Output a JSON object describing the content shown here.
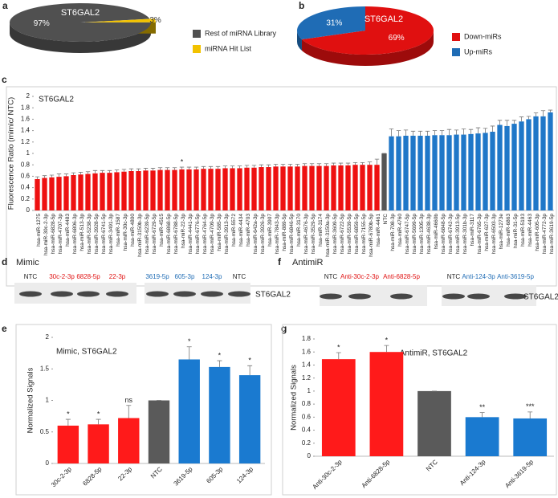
{
  "chart_data": [
    {
      "type": "pie",
      "panel": "a",
      "title": "ST6GAL2",
      "categories": [
        "Rest of miRNA Library",
        "miRNA Hit List"
      ],
      "values": [
        97,
        3
      ],
      "value_labels": [
        "97%",
        "3%"
      ],
      "colors": [
        "#505050",
        "#f2c200"
      ],
      "legend": "right"
    },
    {
      "type": "pie",
      "panel": "b",
      "title": "ST6GAL2",
      "categories": [
        "Down-miRs",
        "Up-miRs"
      ],
      "values": [
        69,
        31
      ],
      "value_labels": [
        "69%",
        "31%"
      ],
      "colors": [
        "#e01010",
        "#1f6cb5"
      ],
      "legend": "right"
    },
    {
      "type": "bar",
      "panel": "c",
      "title": "ST6GAL2",
      "ylabel": "Fluorescence Ratio (mimic/ NTC)",
      "categories": [
        "hsa-miR-1275",
        "hsa-miR-30c-2-3p",
        "hsa-miR-6828-5p",
        "hsa-miR-4707-3p",
        "hsa-miR-4483",
        "hsa-miR-6806-3p",
        "hsa-miR-513-3p",
        "hsa-miR-5238-3p",
        "hsa-miR-3928-5p",
        "hsa-miR-6741-5p",
        "hsa-miR-3491-3p",
        "hsa-miR-1587",
        "hsa-miR-30c-3p",
        "hsa-miR-4800",
        "hsa-miR-3150b-3p",
        "hsa-miR-6239-5p",
        "hsa-miR-6729-5p",
        "hsa-miR-4515",
        "hsa-miR-6868-5p",
        "hsa-miR-6788-5p",
        "hsa-miR-22-3p",
        "hsa-miR-4441-3p",
        "hsa-miR-6776-5p",
        "hsa-miR-4764-5p",
        "hsa-miR-4709-3p",
        "hsa-miR-585-3p",
        "hsa-miR-3913-3p",
        "hsa-miR-5572",
        "hsa-miR-4434",
        "hsa-miR-4703",
        "hsa-miR-642a-3p",
        "hsa-miR-3926-3p",
        "hsa-miR-3907",
        "hsa-miR-7843-3p",
        "hsa-miR-889-5p",
        "hsa-miR-6846-5p",
        "hsa-miR-3170",
        "hsa-miR-4676-3p",
        "hsa-miR-3529-5p",
        "hsa-miR-3174",
        "hsa-miR-3150a-3p",
        "hsa-miR-3609-5p",
        "hsa-miR-6722-5p",
        "hsa-miR-5539-5p",
        "hsa-miR-6859-5p",
        "hsa-miR-7155-5p",
        "hsa-miR-6780b-5p",
        "hsa-miR-4461",
        "NTC",
        "hsa-miR-708-3p",
        "hsa-miR-4760",
        "hsa-miR-6747-5p",
        "hsa-miR-5699-5p",
        "hsa-miR-1305-3p",
        "hsa-miR-4638-3p",
        "hsa-miR-4660b",
        "hsa-miR-6848-5p",
        "hsa-miR-6742-3p",
        "hsa-miR-3913-5p",
        "hsa-miR-301b-3p",
        "hsa-miR-3117",
        "hsa-miR-6765-3p",
        "hsa-miR-627-3p",
        "hsa-miR-6503-3p",
        "hsa-miR-1273e",
        "hsa-miR-6863",
        "hsa-miR-31-5p",
        "hsa-miR-5193",
        "hsa-miR-4463",
        "hsa-miR-605-3p",
        "hsa-miR-4772-3p",
        "hsa-miR-3619-5p"
      ],
      "values": [
        0.55,
        0.57,
        0.58,
        0.59,
        0.6,
        0.62,
        0.63,
        0.64,
        0.65,
        0.66,
        0.66,
        0.67,
        0.68,
        0.69,
        0.69,
        0.7,
        0.7,
        0.71,
        0.71,
        0.71,
        0.72,
        0.72,
        0.72,
        0.73,
        0.73,
        0.73,
        0.74,
        0.74,
        0.74,
        0.75,
        0.75,
        0.76,
        0.76,
        0.77,
        0.77,
        0.77,
        0.77,
        0.78,
        0.78,
        0.78,
        0.78,
        0.79,
        0.79,
        0.79,
        0.8,
        0.8,
        0.8,
        0.8,
        1,
        1.3,
        1.3,
        1.31,
        1.31,
        1.31,
        1.31,
        1.32,
        1.32,
        1.32,
        1.33,
        1.33,
        1.34,
        1.35,
        1.36,
        1.38,
        1.5,
        1.48,
        1.52,
        1.56,
        1.6,
        1.65,
        1.65,
        1.72
      ],
      "errors": [
        0.04,
        0.04,
        0.04,
        0.05,
        0.04,
        0.04,
        0.04,
        0.04,
        0.05,
        0.04,
        0.04,
        0.04,
        0.04,
        0.04,
        0.04,
        0.04,
        0.04,
        0.04,
        0.04,
        0.04,
        0.04,
        0.04,
        0.04,
        0.04,
        0.04,
        0.04,
        0.04,
        0.04,
        0.04,
        0.04,
        0.04,
        0.04,
        0.04,
        0.04,
        0.04,
        0.04,
        0.04,
        0.04,
        0.04,
        0.04,
        0.04,
        0.04,
        0.04,
        0.04,
        0.04,
        0.04,
        0.05,
        0.1,
        0,
        0.13,
        0.1,
        0.1,
        0.08,
        0.08,
        0.08,
        0.08,
        0.08,
        0.1,
        0.08,
        0.1,
        0.08,
        0.1,
        0.08,
        0.1,
        0.08,
        0.1,
        0.06,
        0.08,
        0.05,
        0.06,
        0.1,
        0.04
      ],
      "annotations": [
        null,
        null,
        null,
        null,
        null,
        null,
        null,
        null,
        null,
        null,
        null,
        null,
        null,
        null,
        null,
        null,
        null,
        null,
        null,
        null,
        "*",
        null,
        null,
        null,
        null,
        null,
        null,
        null,
        null,
        null,
        null,
        null,
        null,
        null,
        null,
        null,
        null,
        null,
        null,
        null,
        null,
        null,
        null,
        null,
        null,
        null,
        null,
        null,
        null,
        null,
        null,
        null,
        null,
        null,
        null,
        null,
        null,
        null,
        null,
        null,
        null,
        null,
        null,
        null,
        null,
        null,
        null,
        null,
        null,
        null,
        null,
        null
      ],
      "colors": [
        "#ee1111",
        "#ee1111",
        "#ee1111",
        "#ee1111",
        "#ee1111",
        "#ee1111",
        "#ee1111",
        "#ee1111",
        "#ee1111",
        "#ee1111",
        "#ee1111",
        "#ee1111",
        "#ee1111",
        "#ee1111",
        "#ee1111",
        "#ee1111",
        "#ee1111",
        "#ee1111",
        "#ee1111",
        "#ee1111",
        "#ee1111",
        "#ee1111",
        "#ee1111",
        "#ee1111",
        "#ee1111",
        "#ee1111",
        "#ee1111",
        "#ee1111",
        "#ee1111",
        "#ee1111",
        "#ee1111",
        "#ee1111",
        "#ee1111",
        "#ee1111",
        "#ee1111",
        "#ee1111",
        "#ee1111",
        "#ee1111",
        "#ee1111",
        "#ee1111",
        "#ee1111",
        "#ee1111",
        "#ee1111",
        "#ee1111",
        "#ee1111",
        "#ee1111",
        "#ee1111",
        "#ee1111",
        "#555555",
        "#1f77c8",
        "#1f77c8",
        "#1f77c8",
        "#1f77c8",
        "#1f77c8",
        "#1f77c8",
        "#1f77c8",
        "#1f77c8",
        "#1f77c8",
        "#1f77c8",
        "#1f77c8",
        "#1f77c8",
        "#1f77c8",
        "#1f77c8",
        "#1f77c8",
        "#1f77c8",
        "#1f77c8",
        "#1f77c8",
        "#1f77c8",
        "#1f77c8",
        "#1f77c8",
        "#1f77c8",
        "#1f77c8"
      ],
      "ylim": [
        0,
        2
      ],
      "yticks": [
        0,
        0.2,
        0.4,
        0.6,
        0.8,
        1,
        1.2,
        1.4,
        1.6,
        1.8,
        2
      ],
      "grid": false
    },
    {
      "type": "bar",
      "panel": "e",
      "title": "Mimic, ST6GAL2",
      "ylabel": "Normalized Signals",
      "categories": [
        "30c-2-3p",
        "6828-5p",
        "22-3p",
        "NTC",
        "3619-5p",
        "605-3p",
        "124-3p"
      ],
      "values": [
        0.6,
        0.62,
        0.72,
        1,
        1.65,
        1.53,
        1.4
      ],
      "errors": [
        0.1,
        0.08,
        0.2,
        0,
        0.2,
        0.1,
        0.15
      ],
      "annotations": [
        "*",
        "*",
        "ns",
        null,
        "*",
        "*",
        "*"
      ],
      "colors": [
        "#ff1a1a",
        "#ff1a1a",
        "#ff1a1a",
        "#5a5a5a",
        "#1a7ad0",
        "#1a7ad0",
        "#1a7ad0"
      ],
      "ylim": [
        0,
        2
      ],
      "yticks": [
        0,
        0.5,
        1,
        1.5,
        2
      ],
      "grid": false
    },
    {
      "type": "bar",
      "panel": "g",
      "title": "AntimiR, ST6GAL2",
      "ylabel": "Normalized Signals",
      "categories": [
        "Anti-30c-2-3p",
        "Anti-6828-5p",
        "NTC",
        "Anti-124-3p",
        "Anti-3619-5p"
      ],
      "values": [
        1.49,
        1.6,
        1,
        0.6,
        0.58
      ],
      "errors": [
        0.1,
        0.1,
        0,
        0.07,
        0.1
      ],
      "annotations": [
        "*",
        "*",
        null,
        "**",
        "***"
      ],
      "colors": [
        "#ff1a1a",
        "#ff1a1a",
        "#5a5a5a",
        "#1a7ad0",
        "#1a7ad0"
      ],
      "ylim": [
        0,
        1.8
      ],
      "yticks": [
        0,
        0.2,
        0.4,
        0.6,
        0.8,
        1,
        1.2,
        1.4,
        1.6,
        1.8
      ],
      "grid": false
    }
  ],
  "blots": [
    {
      "panel": "d",
      "title": "Mimic",
      "lanes": [
        "NTC",
        "30c-2-3p",
        "6828-5p",
        "22-3p",
        "3619-5p",
        "605-3p",
        "124-3p",
        "NTC"
      ],
      "lane_colors": [
        "#222222",
        "#e01010",
        "#e01010",
        "#e01010",
        "#1f6cb5",
        "#1f6cb5",
        "#1f6cb5",
        "#222222"
      ],
      "target": "ST6GAL2"
    },
    {
      "panel": "f",
      "title": "AntimiR",
      "lanes": [
        "NTC",
        "Anti-30c-2-3p",
        "Anti-6828-5p",
        "NTC",
        "Anti-124-3p",
        "Anti-3619-5p"
      ],
      "lane_colors": [
        "#222222",
        "#e01010",
        "#e01010",
        "#222222",
        "#1f6cb5",
        "#1f6cb5"
      ],
      "target": "ST6GAL2"
    }
  ]
}
